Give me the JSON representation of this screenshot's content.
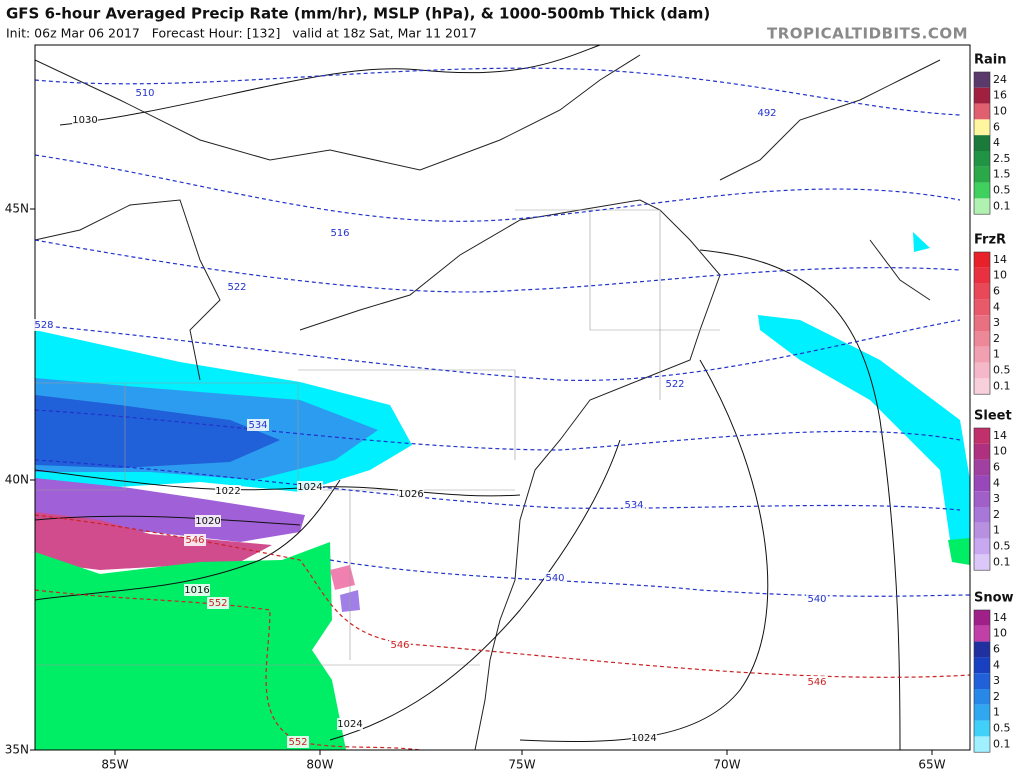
{
  "header": {
    "title": "GFS 6-hour Averaged Precip Rate (mm/hr), MSLP (hPa), & 1000-500mb Thick (dam)",
    "subtitle": "Init: 06z Mar 06 2017   Forecast Hour: [132]   valid at 18z Sat, Mar 11 2017",
    "credit": "TROPICALTIDBITS.COM"
  },
  "map": {
    "longitude_labels": [
      "85W",
      "80W",
      "75W",
      "70W",
      "65W"
    ],
    "latitude_labels": [
      "45N",
      "40N",
      "35N"
    ],
    "thickness_labels": [
      {
        "text": "510",
        "color": "#2233cc"
      },
      {
        "text": "492",
        "color": "#2233cc"
      },
      {
        "text": "516",
        "color": "#2233cc"
      },
      {
        "text": "522",
        "color": "#2233cc"
      },
      {
        "text": "528",
        "color": "#2233cc"
      },
      {
        "text": "522",
        "color": "#2233cc"
      },
      {
        "text": "534",
        "color": "#2233cc"
      },
      {
        "text": "534",
        "color": "#2233cc"
      },
      {
        "text": "540",
        "color": "#2233cc"
      },
      {
        "text": "540",
        "color": "#2233cc"
      },
      {
        "text": "546",
        "color": "#cc2222"
      },
      {
        "text": "552",
        "color": "#cc2222"
      },
      {
        "text": "546",
        "color": "#cc2222"
      },
      {
        "text": "546",
        "color": "#cc2222"
      },
      {
        "text": "552",
        "color": "#cc2222"
      }
    ],
    "pressure_labels": [
      "1030",
      "1022",
      "1024",
      "1026",
      "1020",
      "1016",
      "1024",
      "1024"
    ]
  },
  "legend": [
    {
      "title": "Rain",
      "levels": [
        {
          "label": "24",
          "color": "#5a3a6a"
        },
        {
          "label": "16",
          "color": "#a02040"
        },
        {
          "label": "10",
          "color": "#e06070"
        },
        {
          "label": "6",
          "color": "#fff6a0"
        },
        {
          "label": "4",
          "color": "#1a7a3a"
        },
        {
          "label": "2.5",
          "color": "#1f9444"
        },
        {
          "label": "1.5",
          "color": "#2aa84a"
        },
        {
          "label": "0.5",
          "color": "#40d060"
        },
        {
          "label": "0.1",
          "color": "#b0f0b0"
        }
      ]
    },
    {
      "title": "FrzR",
      "levels": [
        {
          "label": "14",
          "color": "#e8202a"
        },
        {
          "label": "10",
          "color": "#e83040"
        },
        {
          "label": "6",
          "color": "#e84858"
        },
        {
          "label": "4",
          "color": "#e85a6a"
        },
        {
          "label": "3",
          "color": "#e87080"
        },
        {
          "label": "2",
          "color": "#ec8898"
        },
        {
          "label": "1",
          "color": "#f0a0b0"
        },
        {
          "label": "0.5",
          "color": "#f4b8c8"
        },
        {
          "label": "0.1",
          "color": "#f8d0dc"
        }
      ]
    },
    {
      "title": "Sleet",
      "levels": [
        {
          "label": "14",
          "color": "#c0306a"
        },
        {
          "label": "10",
          "color": "#b03080"
        },
        {
          "label": "6",
          "color": "#a040a0"
        },
        {
          "label": "4",
          "color": "#9848b8"
        },
        {
          "label": "3",
          "color": "#a060c8"
        },
        {
          "label": "2",
          "color": "#a878d8"
        },
        {
          "label": "1",
          "color": "#b890e0"
        },
        {
          "label": "0.5",
          "color": "#c8a8f0"
        },
        {
          "label": "0.1",
          "color": "#dcc8f8"
        }
      ]
    },
    {
      "title": "Snow",
      "levels": [
        {
          "label": "14",
          "color": "#a0208a"
        },
        {
          "label": "10",
          "color": "#c040a8"
        },
        {
          "label": "6",
          "color": "#2030a0"
        },
        {
          "label": "4",
          "color": "#1840c0"
        },
        {
          "label": "3",
          "color": "#2060d8"
        },
        {
          "label": "2",
          "color": "#2888e8"
        },
        {
          "label": "1",
          "color": "#30a8f0"
        },
        {
          "label": "0.5",
          "color": "#40d0f8"
        },
        {
          "label": "0.1",
          "color": "#a0f0ff"
        }
      ]
    }
  ]
}
